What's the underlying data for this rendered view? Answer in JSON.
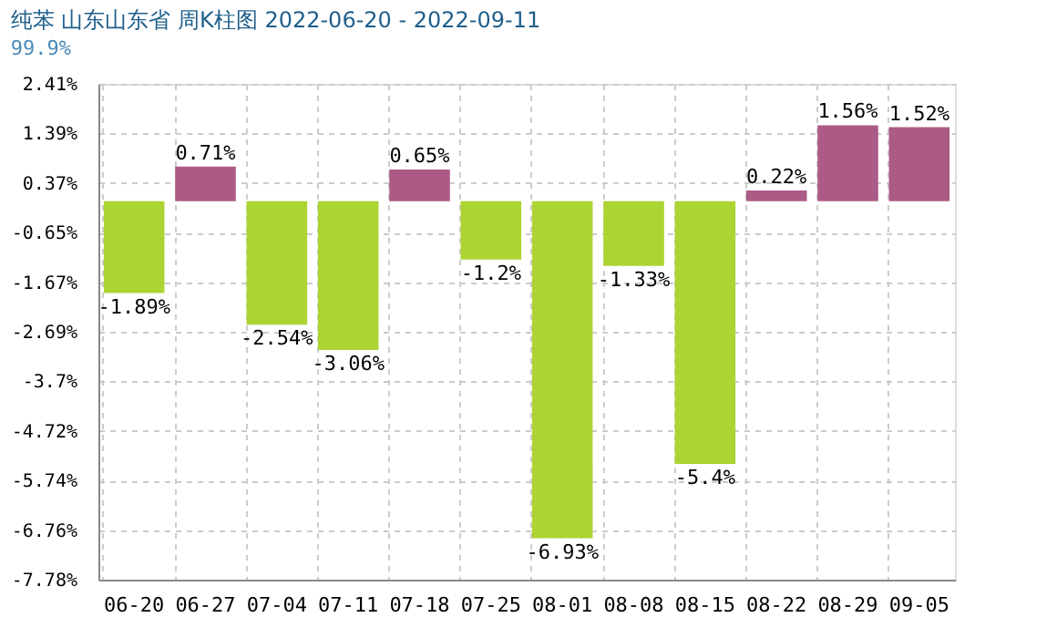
{
  "chart_data": {
    "type": "bar",
    "title": "纯苯 山东山东省 周K柱图 2022-06-20 - 2022-09-11",
    "subtitle": "99.9%",
    "categories": [
      "06-20",
      "06-27",
      "07-04",
      "07-11",
      "07-18",
      "07-25",
      "08-01",
      "08-08",
      "08-15",
      "08-22",
      "08-29",
      "09-05"
    ],
    "values": [
      -1.89,
      0.71,
      -2.54,
      -3.06,
      0.65,
      -1.2,
      -6.93,
      -1.33,
      -5.4,
      0.22,
      1.56,
      1.52
    ],
    "value_labels": [
      "-1.89%",
      "0.71%",
      "-2.54%",
      "-3.06%",
      "0.65%",
      "-1.2%",
      "-6.93%",
      "-1.33%",
      "-5.4%",
      "0.22%",
      "1.56%",
      "1.52%"
    ],
    "colors": [
      "#acd433",
      "#ac5a86",
      "#acd433",
      "#acd433",
      "#ac5a86",
      "#acd433",
      "#acd433",
      "#acd433",
      "#acd433",
      "#ac5a86",
      "#ac5a86",
      "#ac5a86"
    ],
    "ylim": [
      -7.78,
      2.41
    ],
    "yticks": [
      {
        "value": 2.41,
        "label": "2.41%"
      },
      {
        "value": 1.39,
        "label": "1.39%"
      },
      {
        "value": 0.37,
        "label": "0.37%"
      },
      {
        "value": -0.65,
        "label": "-0.65%"
      },
      {
        "value": -1.67,
        "label": "-1.67%"
      },
      {
        "value": -2.69,
        "label": "-2.69%"
      },
      {
        "value": -3.7,
        "label": "-3.7%"
      },
      {
        "value": -4.72,
        "label": "-4.72%"
      },
      {
        "value": -5.74,
        "label": "-5.74%"
      },
      {
        "value": -6.76,
        "label": "-6.76%"
      },
      {
        "value": -7.78,
        "label": "-7.78%"
      }
    ],
    "grid": true
  }
}
